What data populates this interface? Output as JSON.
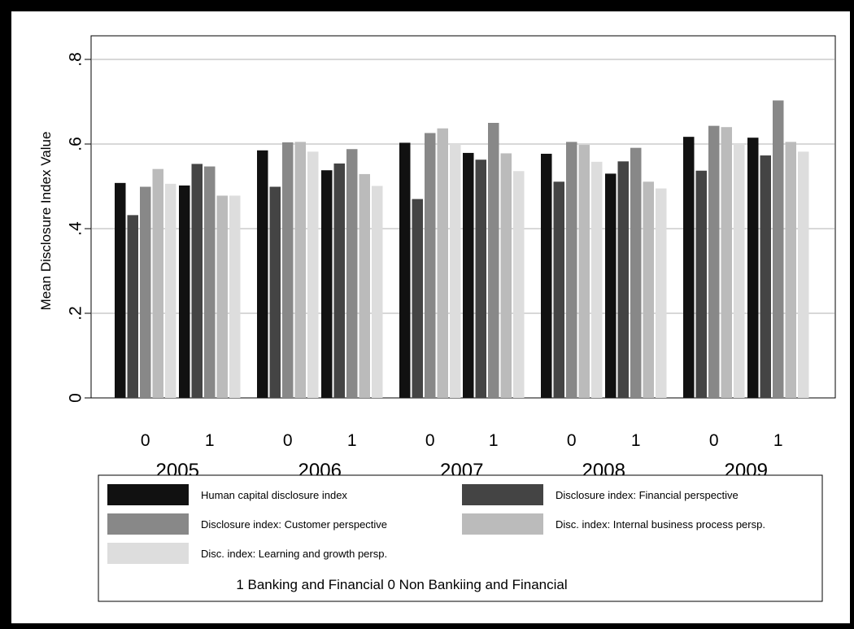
{
  "chart_data": {
    "type": "bar",
    "ylabel": "Mean Disclosure Index Value",
    "ylim": [
      0,
      0.85
    ],
    "yticks": [
      {
        "value": 0,
        "label": "0"
      },
      {
        "value": 0.2,
        "label": ".2"
      },
      {
        "value": 0.4,
        "label": ".4"
      },
      {
        "value": 0.6,
        "label": ".6"
      },
      {
        "value": 0.8,
        "label": ".8"
      }
    ],
    "grid": true,
    "legend_position": "bottom",
    "legend_note": "1 Banking and Financial   0 Non Bankiing and Financial",
    "years": [
      "2005",
      "2006",
      "2007",
      "2008",
      "2009"
    ],
    "subgroups": [
      "0",
      "1"
    ],
    "series": [
      {
        "name": "Human capital disclosure index",
        "color": "#111111",
        "values": [
          0.508,
          0.502,
          0.585,
          0.538,
          0.603,
          0.579,
          0.577,
          0.53,
          0.617,
          0.615
        ]
      },
      {
        "name": "Disclosure index: Financial perspective",
        "color": "#444444",
        "values": [
          0.432,
          0.553,
          0.499,
          0.554,
          0.47,
          0.563,
          0.511,
          0.559,
          0.537,
          0.573
        ]
      },
      {
        "name": "Disclosure index: Customer perspective",
        "color": "#888888",
        "values": [
          0.499,
          0.547,
          0.604,
          0.588,
          0.626,
          0.65,
          0.605,
          0.591,
          0.643,
          0.703
        ]
      },
      {
        "name": "Disc. index: Internal business process persp.",
        "color": "#bbbbbb",
        "values": [
          0.541,
          0.478,
          0.605,
          0.529,
          0.637,
          0.578,
          0.598,
          0.511,
          0.64,
          0.605
        ]
      },
      {
        "name": "Disc. index: Learning and growth persp.",
        "color": "#dddddd",
        "values": [
          0.506,
          0.478,
          0.582,
          0.501,
          0.601,
          0.536,
          0.558,
          0.495,
          0.601,
          0.582
        ]
      }
    ]
  }
}
